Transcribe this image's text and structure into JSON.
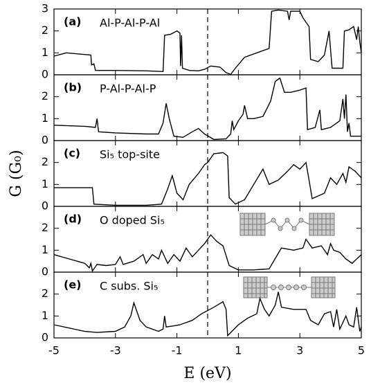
{
  "chart_data": [
    {
      "type": "line",
      "label": "(a)",
      "annotation": "Al-P-Al-P-Al",
      "color": "#000000",
      "vline": 0,
      "xlim": [
        -5,
        5
      ],
      "xticks": [
        -5,
        -3,
        -1,
        1,
        3,
        5
      ],
      "ylim": [
        0,
        3
      ],
      "yticks": [
        0,
        1,
        2,
        3
      ],
      "x": [
        -5,
        -4.6,
        -4.2,
        -3.8,
        -3.78,
        -3.7,
        -3.65,
        -3,
        -2,
        -1.45,
        -1.4,
        -1.2,
        -1.0,
        -0.9,
        -0.88,
        -0.85,
        -0.82,
        -0.6,
        -0.3,
        -0.1,
        0.1,
        0.4,
        0.6,
        0.75,
        0.9,
        1.2,
        1.6,
        2.0,
        2.08,
        2.3,
        2.6,
        2.65,
        2.7,
        3.0,
        3.1,
        3.3,
        3.35,
        3.6,
        3.8,
        3.95,
        4.05,
        4.4,
        4.45,
        4.6,
        4.75,
        4.85,
        4.9,
        4.95,
        5
      ],
      "values": [
        0.85,
        1.0,
        0.95,
        0.9,
        0.45,
        0.5,
        0.2,
        0.2,
        0.18,
        0.15,
        1.8,
        1.85,
        2.0,
        1.9,
        0.4,
        1.8,
        0.3,
        0.2,
        0.18,
        0.25,
        0.4,
        0.35,
        0.1,
        0.02,
        0.3,
        0.8,
        1.0,
        1.2,
        2.9,
        2.95,
        2.9,
        2.5,
        2.9,
        2.9,
        2.6,
        2.2,
        0.7,
        0.6,
        0.9,
        2.0,
        0.3,
        0.3,
        2.0,
        2.05,
        2.2,
        1.6,
        2.2,
        1.5,
        1.0
      ]
    },
    {
      "type": "line",
      "label": "(b)",
      "annotation": "P-Al-P-Al-P",
      "color": "#000000",
      "vline": 0,
      "xlim": [
        -5,
        5
      ],
      "xticks": [
        -5,
        -3,
        -1,
        1,
        3,
        5
      ],
      "ylim": [
        0,
        3
      ],
      "yticks": [
        0,
        1,
        2
      ],
      "x": [
        -5,
        -4,
        -3.65,
        -3.6,
        -3.55,
        -3,
        -2,
        -1.6,
        -1.45,
        -1.35,
        -1.25,
        -1.1,
        -0.8,
        -0.5,
        -0.3,
        -0.1,
        0.2,
        0.6,
        0.75,
        0.8,
        0.85,
        1.0,
        1.15,
        1.2,
        1.3,
        1.5,
        1.8,
        2.05,
        2.2,
        2.35,
        2.5,
        2.7,
        3.0,
        3.2,
        3.25,
        3.5,
        3.65,
        3.7,
        4.0,
        4.3,
        4.4,
        4.45,
        4.5,
        4.55,
        4.6,
        4.65,
        5
      ],
      "values": [
        0.7,
        0.65,
        0.6,
        1.0,
        0.4,
        0.35,
        0.3,
        0.3,
        0.8,
        1.7,
        1.0,
        0.2,
        0.15,
        0.4,
        0.55,
        0.3,
        0.05,
        0.08,
        0.3,
        0.9,
        0.5,
        0.9,
        1.2,
        1.6,
        1.0,
        1.0,
        1.1,
        1.8,
        2.7,
        2.85,
        2.2,
        2.2,
        2.3,
        2.4,
        0.5,
        0.6,
        1.4,
        0.5,
        0.6,
        0.9,
        1.9,
        1.0,
        2.1,
        0.4,
        0.8,
        0.2,
        0.2
      ]
    },
    {
      "type": "line",
      "label": "(c)",
      "annotation": "Si₅ top-site",
      "color": "#000000",
      "vline": 0,
      "ylabel": "G (G₀)",
      "xlim": [
        -5,
        5
      ],
      "xticks": [
        -5,
        -3,
        -1,
        1,
        3,
        5
      ],
      "ylim": [
        0,
        3
      ],
      "yticks": [
        0,
        1,
        2
      ],
      "x": [
        -5,
        -4,
        -3.75,
        -3.7,
        -3,
        -2,
        -1.5,
        -1.3,
        -1.15,
        -1.0,
        -0.8,
        -0.6,
        -0.3,
        -0.1,
        0.0,
        0.2,
        0.5,
        0.65,
        0.7,
        0.9,
        1.2,
        1.5,
        1.8,
        2.0,
        2.3,
        2.6,
        2.8,
        3.0,
        3.2,
        3.3,
        3.4,
        3.8,
        4.0,
        4.2,
        4.4,
        4.5,
        4.6,
        4.8,
        5
      ],
      "values": [
        0.85,
        0.85,
        0.85,
        0.1,
        0.05,
        0.05,
        0.1,
        0.8,
        1.4,
        0.6,
        0.3,
        1.0,
        1.5,
        1.9,
        2.0,
        2.4,
        2.45,
        2.3,
        0.4,
        0.1,
        0.3,
        1.0,
        1.7,
        1.0,
        1.2,
        1.6,
        1.9,
        1.7,
        2.0,
        1.2,
        0.35,
        0.6,
        1.3,
        1.0,
        1.5,
        1.1,
        1.8,
        1.6,
        1.3
      ]
    },
    {
      "type": "line",
      "label": "(d)",
      "annotation": "O doped Si₅",
      "color": "#000000",
      "vline": 0,
      "xlim": [
        -5,
        5
      ],
      "xticks": [
        -5,
        -3,
        -1,
        1,
        3,
        5
      ],
      "ylim": [
        0,
        3
      ],
      "yticks": [
        0,
        1,
        2
      ],
      "x": [
        -5,
        -4.5,
        -4,
        -3.85,
        -3.8,
        -3.75,
        -3.6,
        -3.3,
        -3,
        -2.85,
        -2.75,
        -2.4,
        -2.1,
        -2.0,
        -1.8,
        -1.6,
        -1.5,
        -1.3,
        -1.1,
        -0.9,
        -0.7,
        -0.5,
        -0.3,
        -0.1,
        0.1,
        0.3,
        0.5,
        0.7,
        1.0,
        1.5,
        2.0,
        2.4,
        2.8,
        3.1,
        3.2,
        3.4,
        3.7,
        3.9,
        4.0,
        4.1,
        4.3,
        4.5,
        4.7,
        4.85,
        5
      ],
      "values": [
        0.8,
        0.6,
        0.4,
        0.2,
        0.4,
        0.05,
        0.35,
        0.3,
        0.35,
        0.7,
        0.35,
        0.5,
        0.8,
        0.4,
        0.8,
        0.6,
        1.0,
        0.4,
        0.8,
        0.5,
        1.1,
        0.7,
        1.0,
        1.3,
        1.7,
        1.4,
        1.2,
        0.3,
        0.1,
        0.1,
        0.15,
        1.1,
        1.0,
        1.1,
        1.5,
        1.1,
        1.2,
        0.8,
        1.3,
        1.0,
        0.9,
        0.6,
        0.4,
        0.6,
        0.8
      ]
    },
    {
      "type": "line",
      "label": "(e)",
      "annotation": "C subs. Si₅",
      "color": "#000000",
      "vline": 0,
      "xlabel": "E (eV)",
      "xlim": [
        -5,
        5
      ],
      "xticks": [
        -5,
        -3,
        -1,
        1,
        3,
        5
      ],
      "ylim": [
        0,
        3
      ],
      "yticks": [
        0,
        1,
        2
      ],
      "x": [
        -5,
        -4,
        -3.6,
        -3,
        -2.7,
        -2.5,
        -2.4,
        -2.2,
        -2,
        -1.6,
        -1.45,
        -1.4,
        -1.35,
        -1.1,
        -0.9,
        -0.5,
        -0.2,
        0.2,
        0.5,
        0.6,
        0.65,
        1.0,
        1.3,
        1.6,
        1.7,
        1.85,
        2.0,
        2.2,
        2.3,
        2.4,
        2.8,
        3.2,
        3.35,
        3.6,
        3.8,
        4.0,
        4.1,
        4.2,
        4.3,
        4.5,
        4.6,
        4.75,
        4.85,
        4.95,
        5
      ],
      "values": [
        0.6,
        0.3,
        0.25,
        0.3,
        0.5,
        1.0,
        1.6,
        0.8,
        0.5,
        0.3,
        0.4,
        1.0,
        0.5,
        0.55,
        0.6,
        0.8,
        1.1,
        1.4,
        1.65,
        1.3,
        0.1,
        0.6,
        0.9,
        1.1,
        1.8,
        1.3,
        1.0,
        1.5,
        2.1,
        1.4,
        1.3,
        1.3,
        0.8,
        0.6,
        1.1,
        1.2,
        0.5,
        1.3,
        0.4,
        1.0,
        0.6,
        0.5,
        1.4,
        0.3,
        0.5
      ]
    }
  ]
}
